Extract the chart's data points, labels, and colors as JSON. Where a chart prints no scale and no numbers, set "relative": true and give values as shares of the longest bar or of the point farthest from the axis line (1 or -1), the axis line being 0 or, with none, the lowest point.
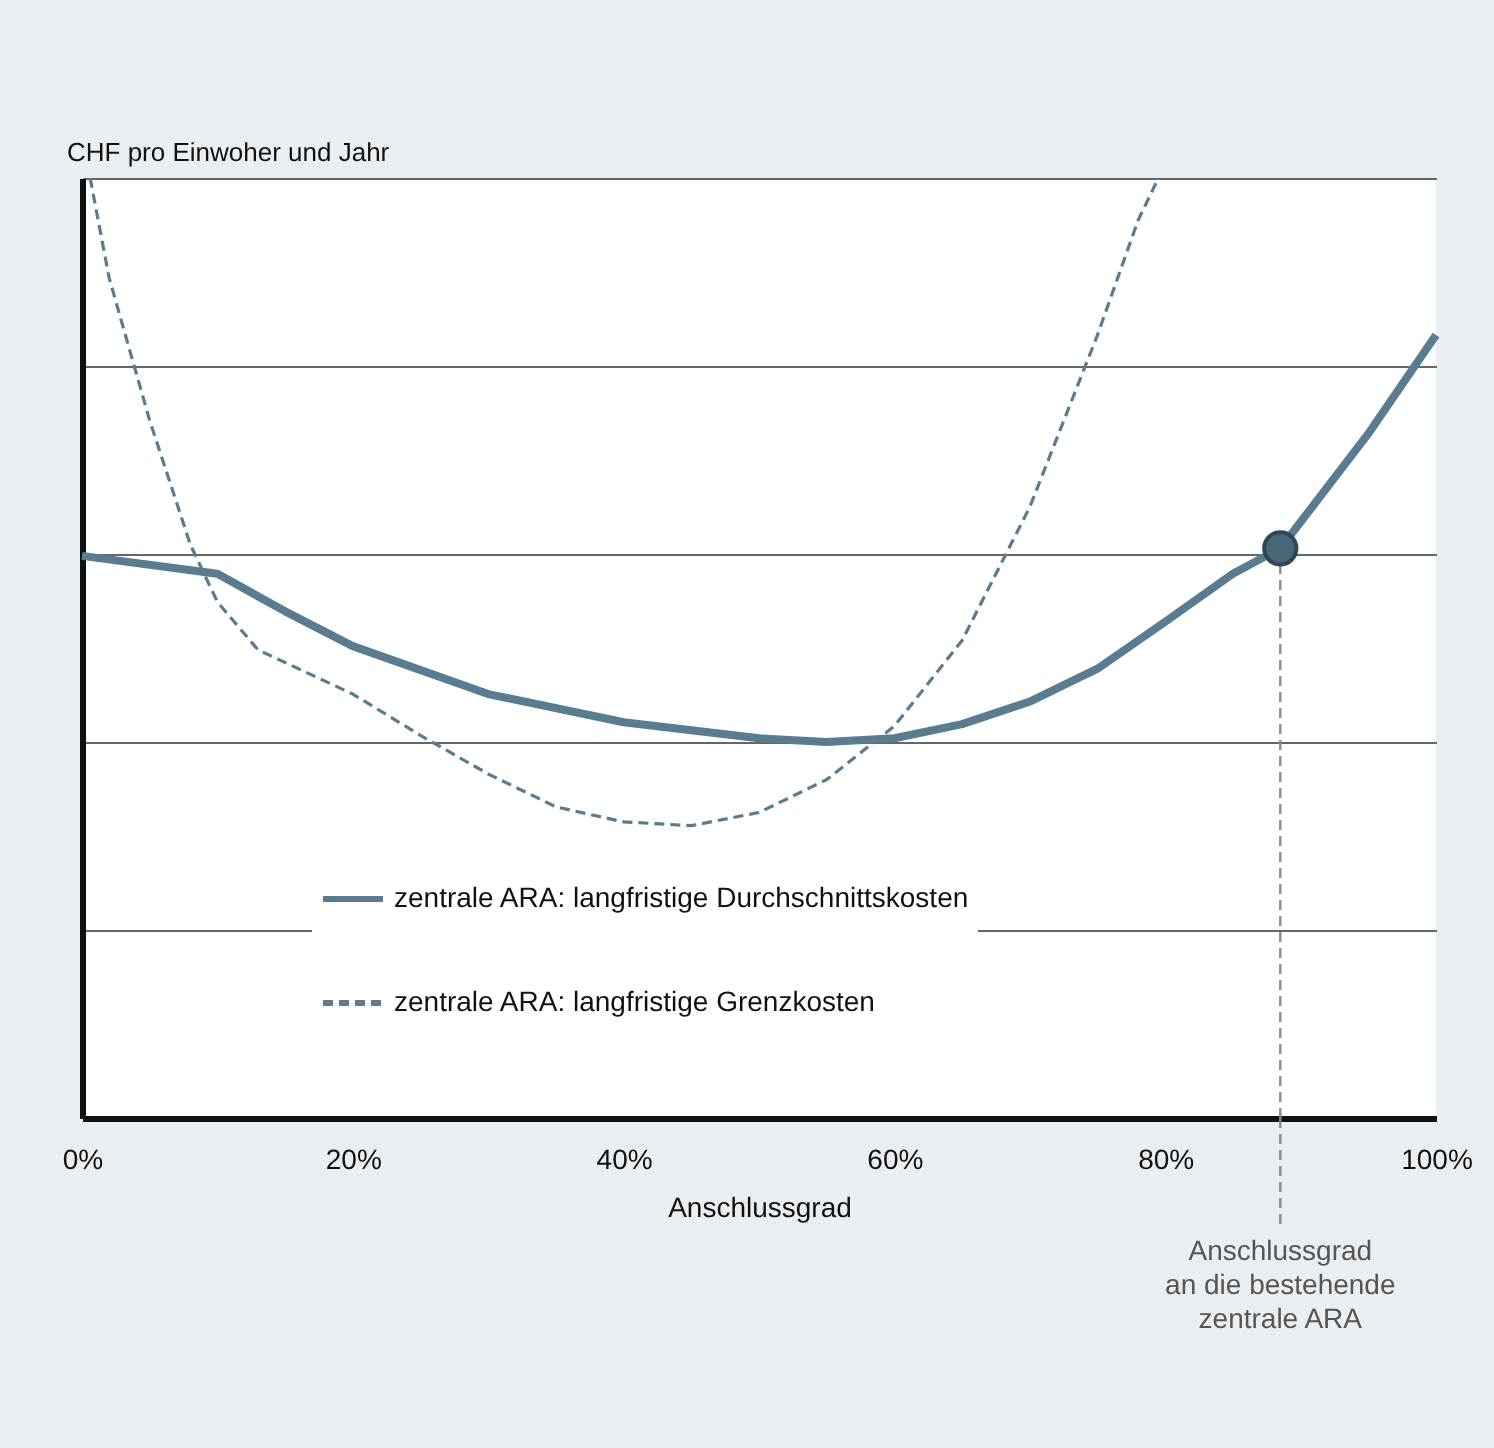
{
  "chart_data": {
    "type": "line",
    "relative": true,
    "ylabel": "CHF pro Einwoher und Jahr",
    "xlabel": "Anschlussgrad",
    "xlim": [
      0,
      100
    ],
    "xticks": [
      {
        "value": 0,
        "label": "0%"
      },
      {
        "value": 20,
        "label": "20%"
      },
      {
        "value": 40,
        "label": "40%"
      },
      {
        "value": 60,
        "label": "60%"
      },
      {
        "value": 80,
        "label": "80%"
      },
      {
        "value": 100,
        "label": "100%"
      }
    ],
    "grid": "y",
    "legend": "bottom",
    "series": [
      {
        "name": "zentrale ARA: langfristige Durchschnittskosten",
        "color": "#5b7b90",
        "line_style": "solid",
        "x": [
          0,
          10,
          15,
          20,
          30,
          40,
          50,
          55,
          60,
          65,
          70,
          75,
          80,
          85,
          88.5,
          90,
          95,
          100
        ],
        "values": [
          0.598,
          0.579,
          0.539,
          0.502,
          0.451,
          0.421,
          0.404,
          0.4,
          0.404,
          0.419,
          0.443,
          0.478,
          0.528,
          0.579,
          0.606,
          0.634,
          0.728,
          0.833
        ]
      },
      {
        "name": "zentrale ARA: langfristige Grenzkosten",
        "color": "#5b7b90",
        "line_style": "dashed",
        "x": [
          0.6,
          2,
          5,
          8,
          10,
          13,
          20,
          25,
          30,
          35,
          40,
          45,
          50,
          55,
          60,
          65,
          70,
          75,
          78,
          79.5
        ],
        "values": [
          1.0,
          0.894,
          0.742,
          0.61,
          0.549,
          0.498,
          0.451,
          0.407,
          0.366,
          0.331,
          0.315,
          0.311,
          0.325,
          0.36,
          0.417,
          0.508,
          0.65,
          0.833,
          0.955,
          1.0
        ]
      },
      {
        "type": "scatter",
        "color": "#4a677a",
        "marker": "circle",
        "x": [
          88.5
        ],
        "values": [
          0.606
        ]
      }
    ],
    "ref_lines": [
      {
        "axis": "x",
        "value": 88.5,
        "label": "Anschlussgrad\nan die bestehende\nzentrale ARA",
        "color": "#8a8a8a",
        "line_style": "dashed"
      }
    ]
  }
}
